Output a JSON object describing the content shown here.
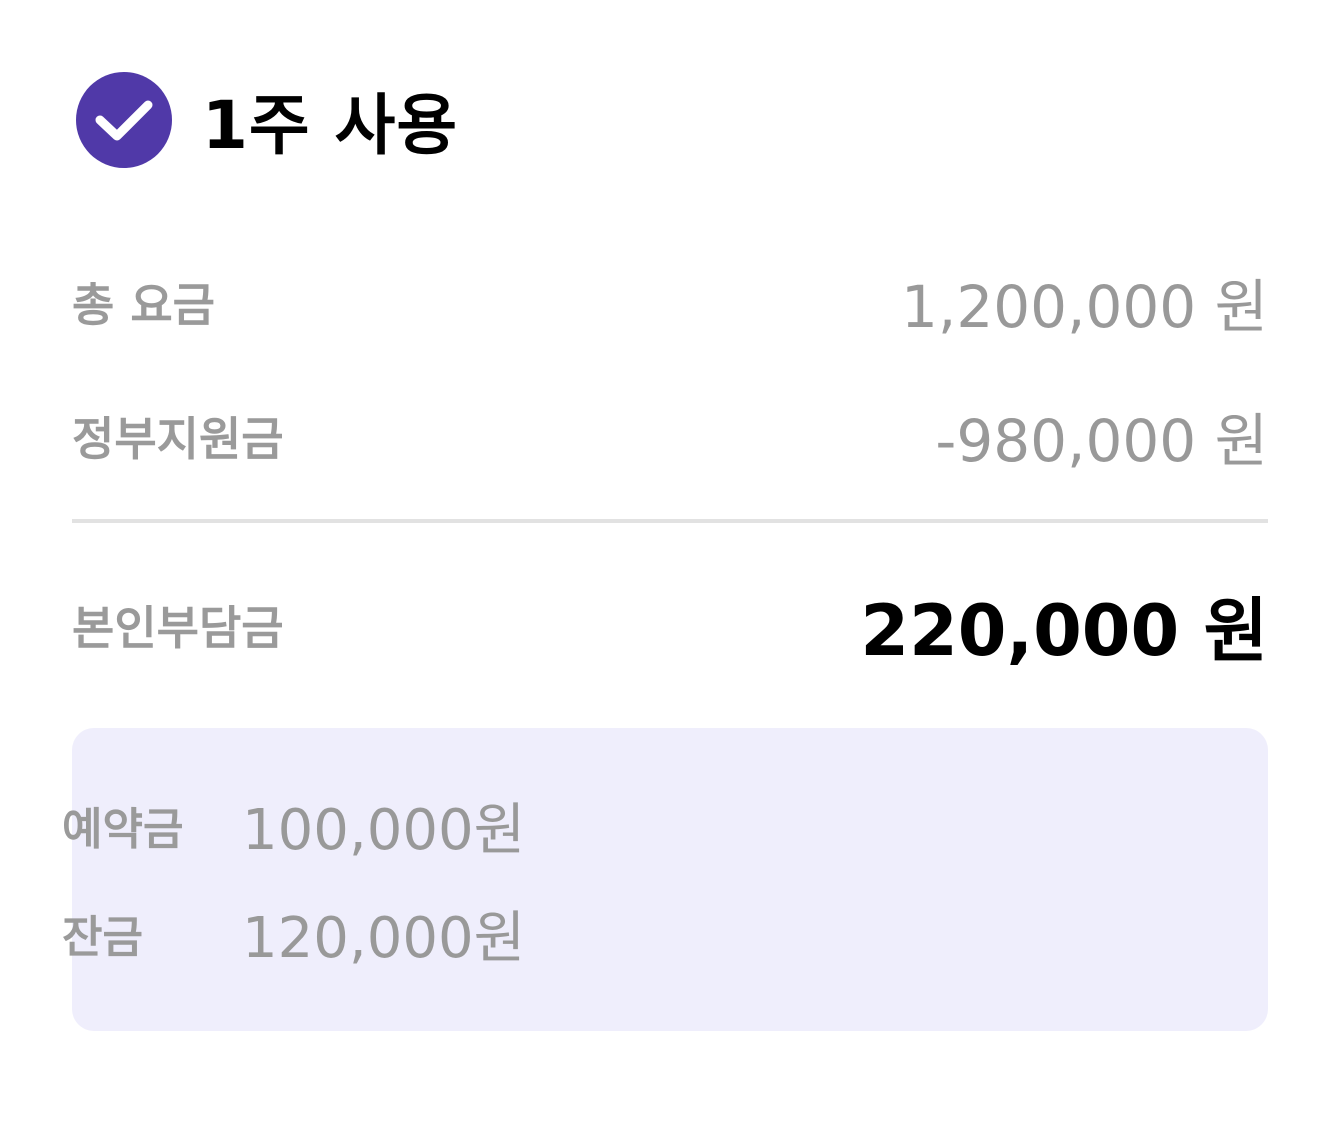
{
  "header": {
    "icon": "check-circle-icon",
    "title": "1주 사용"
  },
  "rows": {
    "total": {
      "label": "총 요금",
      "value": "1,200,000 원"
    },
    "subsidy": {
      "label": "정부지원금",
      "value": "-980,000 원"
    },
    "copay": {
      "label": "본인부담금",
      "value": "220,000 원"
    }
  },
  "info": {
    "deposit": {
      "label": "예약금",
      "value": "100,000원"
    },
    "balance": {
      "label": "잔금",
      "value": "120,000원"
    }
  },
  "colors": {
    "accent": "#5039a8",
    "info_bg": "#efeefc",
    "muted_text": "#999999",
    "divider": "#e2e2e2"
  }
}
